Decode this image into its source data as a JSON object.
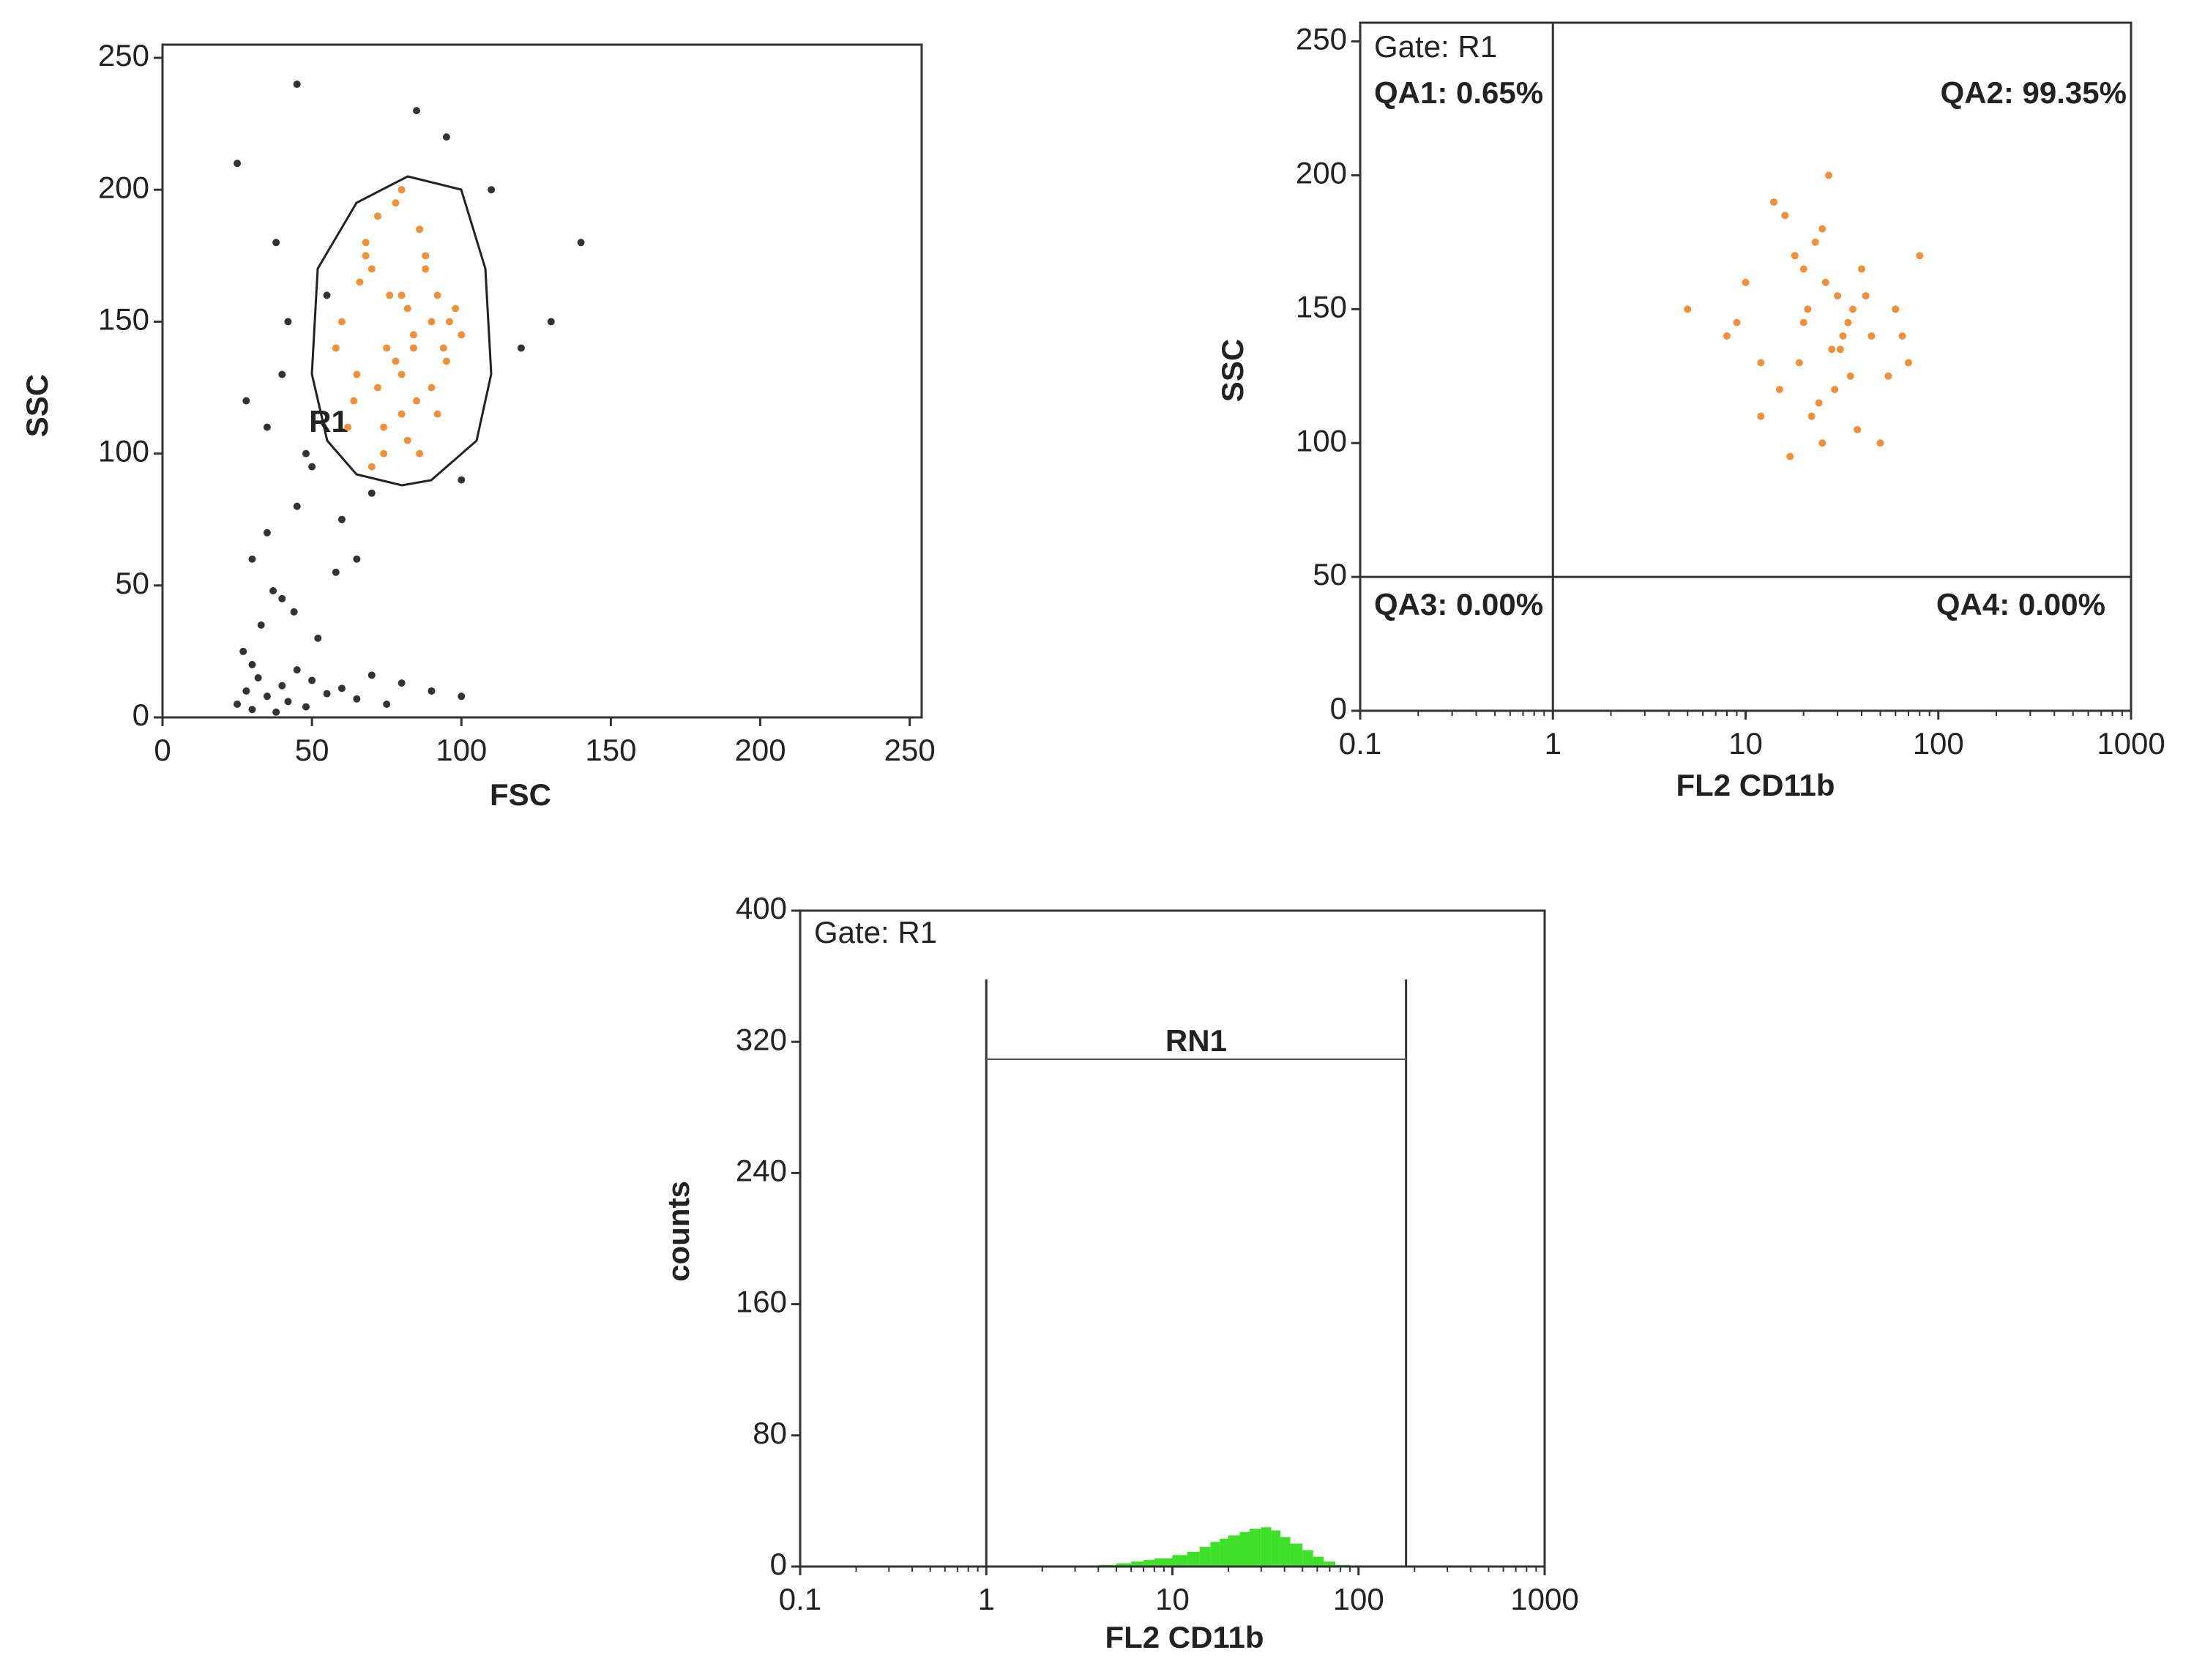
{
  "chart_data": [
    {
      "type": "scatter",
      "x_label": "FSC",
      "y_label": "SSC",
      "annotations": [
        "R1"
      ],
      "xlim": [
        0,
        254
      ],
      "ylim": [
        0,
        255
      ],
      "xticks": [
        0,
        50,
        100,
        150,
        200,
        250
      ],
      "yticks": [
        0,
        50,
        100,
        150,
        200,
        250
      ],
      "series": [
        {
          "color": "#333333",
          "x": [
            25,
            28,
            30,
            32,
            35,
            38,
            40,
            42,
            45,
            48,
            50,
            55,
            60,
            65,
            70,
            75,
            80,
            90,
            100,
            27,
            33,
            37,
            44,
            52,
            58,
            30,
            35,
            40,
            45,
            50,
            28,
            42,
            60,
            38,
            25,
            55,
            65,
            120,
            130,
            45,
            100,
            110,
            35,
            95,
            140,
            30,
            70,
            85,
            48,
            40
          ],
          "values": [
            5,
            10,
            3,
            15,
            8,
            2,
            12,
            6,
            18,
            4,
            14,
            9,
            11,
            7,
            16,
            5,
            13,
            10,
            8,
            25,
            35,
            48,
            40,
            30,
            55,
            60,
            70,
            45,
            80,
            95,
            120,
            150,
            75,
            180,
            210,
            160,
            60,
            140,
            150,
            240,
            90,
            200,
            110,
            220,
            180,
            20,
            85,
            230,
            100,
            130
          ]
        },
        {
          "color": "#f0903a",
          "x": [
            60,
            65,
            70,
            75,
            80,
            85,
            90,
            95,
            100,
            62,
            68,
            72,
            78,
            82,
            88,
            92,
            98,
            58,
            66,
            74,
            80,
            86,
            94,
            70,
            76,
            84,
            90,
            64,
            72,
            80,
            88,
            96,
            78,
            82,
            74,
            86,
            92,
            68,
            80,
            84
          ],
          "values": [
            150,
            130,
            170,
            140,
            160,
            120,
            150,
            135,
            145,
            110,
            180,
            125,
            195,
            105,
            175,
            115,
            155,
            140,
            165,
            100,
            130,
            185,
            140,
            95,
            160,
            145,
            125,
            120,
            190,
            115,
            170,
            150,
            135,
            155,
            110,
            100,
            160,
            175,
            200,
            140
          ]
        }
      ]
    },
    {
      "type": "scatter",
      "x_label": "FL2  CD11b",
      "y_label": "SSC",
      "xlog": true,
      "annotations": [
        "Gate: R1",
        "QA1: 0.65%",
        "QA2: 99.35%",
        "QA3: 0.00%",
        "QA4: 0.00%"
      ],
      "xlim": [
        0.1,
        1000
      ],
      "ylim": [
        0,
        257
      ],
      "xticks": [
        0.1,
        1,
        10,
        100,
        1000
      ],
      "yticks": [
        0,
        50,
        100,
        150,
        200,
        250
      ],
      "quadrant": {
        "x": 1,
        "y": 50
      },
      "series": [
        {
          "color": "#f0903a",
          "x": [
            5,
            8,
            10,
            12,
            15,
            18,
            20,
            22,
            25,
            28,
            30,
            35,
            40,
            45,
            50,
            60,
            70,
            80,
            14,
            17,
            21,
            24,
            27,
            32,
            38,
            26,
            19,
            23,
            29,
            34,
            12,
            16,
            42,
            55,
            31,
            20,
            25,
            36,
            9,
            65
          ],
          "values": [
            150,
            140,
            160,
            130,
            120,
            170,
            145,
            110,
            180,
            135,
            155,
            125,
            165,
            140,
            100,
            150,
            130,
            170,
            190,
            95,
            150,
            115,
            200,
            140,
            105,
            160,
            130,
            175,
            120,
            145,
            110,
            185,
            155,
            125,
            135,
            165,
            100,
            150,
            145,
            140
          ]
        }
      ]
    },
    {
      "type": "histogram",
      "x_label": "FL2  CD11b",
      "y_label": "counts",
      "xlog": true,
      "color": "#3ee02a",
      "annotations": [
        "Gate: R1"
      ],
      "marker": {
        "label": "RN1",
        "range": [
          1,
          180
        ]
      },
      "xlim": [
        0.1,
        1000
      ],
      "ylim": [
        0,
        400
      ],
      "xticks": [
        0.1,
        1,
        10,
        100,
        1000
      ],
      "yticks": [
        0,
        80,
        160,
        240,
        320,
        400
      ],
      "bins": [
        4,
        5,
        6,
        7,
        8,
        10,
        12,
        14,
        16,
        18,
        20,
        23,
        26,
        30,
        34,
        38,
        43,
        50,
        57,
        65,
        75,
        90
      ],
      "counts": [
        1,
        2,
        3,
        4,
        5,
        7,
        9,
        12,
        15,
        17,
        19,
        21,
        23,
        24,
        22,
        18,
        14,
        10,
        6,
        3,
        1
      ]
    }
  ]
}
